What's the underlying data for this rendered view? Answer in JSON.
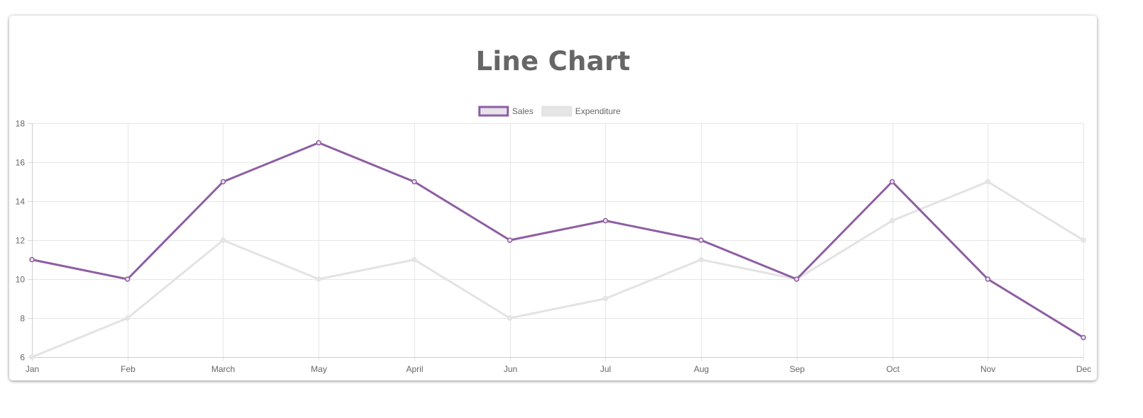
{
  "chart_data": {
    "type": "line",
    "title": "Line Chart",
    "categories": [
      "Jan",
      "Feb",
      "March",
      "May",
      "April",
      "Jun",
      "Jul",
      "Aug",
      "Sep",
      "Oct",
      "Nov",
      "Dec"
    ],
    "series": [
      {
        "name": "Sales",
        "values": [
          11,
          10,
          15,
          17,
          15,
          12,
          13,
          12,
          10,
          15,
          10,
          7
        ],
        "color": "#8e5ea2",
        "fill": "#e8e2ea"
      },
      {
        "name": "Expenditure",
        "values": [
          6,
          8,
          12,
          10,
          11,
          8,
          9,
          11,
          10,
          13,
          15,
          12
        ],
        "color": "#e3e3e3",
        "fill": "#e6e6e6"
      }
    ],
    "ylim": [
      6,
      18
    ],
    "yticks": [
      6,
      8,
      10,
      12,
      14,
      16,
      18
    ],
    "grid": true,
    "legend_position": "top"
  }
}
